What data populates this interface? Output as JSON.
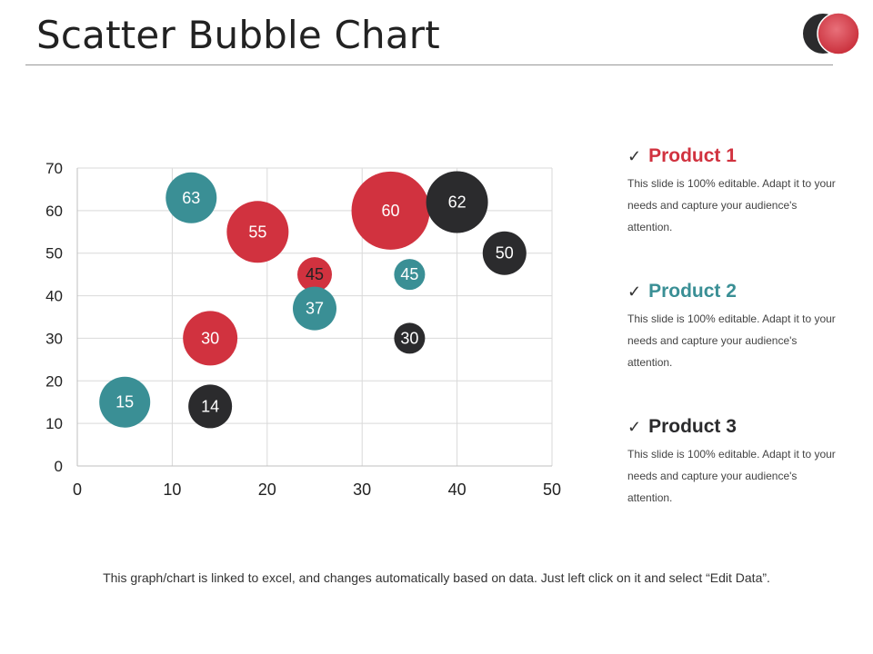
{
  "title": "Scatter Bubble Chart",
  "colors": {
    "red": "#d1323f",
    "teal": "#3a8f95",
    "black": "#2b2b2d"
  },
  "chart_data": {
    "type": "scatter",
    "subtype": "bubble",
    "xlim": [
      0,
      50
    ],
    "ylim": [
      0,
      70
    ],
    "x_ticks": [
      0,
      10,
      20,
      30,
      40,
      50
    ],
    "y_ticks": [
      0,
      10,
      20,
      30,
      40,
      50,
      60,
      70
    ],
    "grid": true,
    "series": [
      {
        "name": "Product 1",
        "color": "#d1323f",
        "points": [
          {
            "x": 14,
            "y": 30,
            "size": 30
          },
          {
            "x": 19,
            "y": 55,
            "size": 55
          },
          {
            "x": 25,
            "y": 45,
            "size": 45
          },
          {
            "x": 33,
            "y": 60,
            "size": 60
          }
        ]
      },
      {
        "name": "Product 2",
        "color": "#3a8f95",
        "points": [
          {
            "x": 5,
            "y": 15,
            "size": 15
          },
          {
            "x": 12,
            "y": 63,
            "size": 63
          },
          {
            "x": 25,
            "y": 37,
            "size": 37
          },
          {
            "x": 35,
            "y": 45,
            "size": 45
          }
        ]
      },
      {
        "name": "Product 3",
        "color": "#2b2b2d",
        "points": [
          {
            "x": 14,
            "y": 14,
            "size": 14
          },
          {
            "x": 35,
            "y": 30,
            "size": 30
          },
          {
            "x": 40,
            "y": 62,
            "size": 62
          },
          {
            "x": 45,
            "y": 50,
            "size": 50
          }
        ]
      }
    ]
  },
  "legend": [
    {
      "check": "✓",
      "name": "Product 1",
      "color": "#d1323f",
      "text": "This slide is 100% editable. Adapt it to your needs and capture your audience's attention."
    },
    {
      "check": "✓",
      "name": "Product 2",
      "color": "#3a8f95",
      "text": "This slide is 100% editable. Adapt it to your needs and capture your audience's attention."
    },
    {
      "check": "✓",
      "name": "Product 3",
      "color": "#2b2b2d",
      "text": "This slide is 100% editable. Adapt it to your needs and capture your audience's attention."
    }
  ],
  "footer": "This graph/chart is linked to excel, and changes automatically  based on data. Just left click on it and select “Edit Data”."
}
